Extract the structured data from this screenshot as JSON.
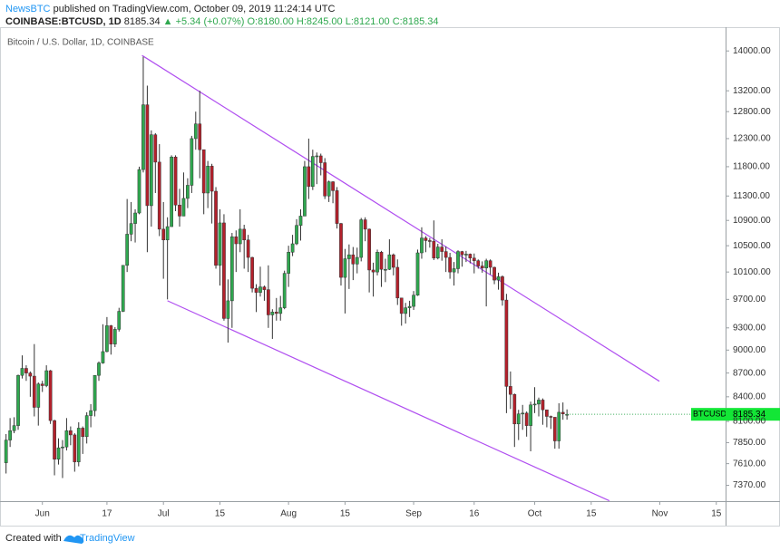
{
  "header": {
    "author": "NewsBTC",
    "published": "published on TradingView.com, October 09, 2019 11:24:14 UTC",
    "symbol": "COINBASE:BTCUSD, 1D",
    "price": "8185.34",
    "change": "▲ +5.34 (+0.07%)",
    "open": "O:8180.00",
    "high": "H:8245.00",
    "low": "L:8121.00",
    "close": "C:8185.34"
  },
  "footer": {
    "created": "Created with",
    "brand": "TradingView"
  },
  "chart_data": {
    "type": "candlestick",
    "title": "Bitcoin / U.S. Dollar, 1D, COINBASE",
    "series_name": "BTCUSD",
    "up_color": "#2fa84f",
    "down_color": "#b3202b",
    "log_scale": true,
    "grid": false,
    "ylim": [
      7200,
      14500
    ],
    "xlim": [
      -10.5,
      169.3
    ],
    "yticks": [
      {
        "value": 14000,
        "label": "14000.00"
      },
      {
        "value": 13200,
        "label": "13200.00"
      },
      {
        "value": 12800,
        "label": "12800.00"
      },
      {
        "value": 12300,
        "label": "12300.00"
      },
      {
        "value": 11800,
        "label": "11800.00"
      },
      {
        "value": 11300,
        "label": "11300.00"
      },
      {
        "value": 10900,
        "label": "10900.00"
      },
      {
        "value": 10500,
        "label": "10500.00"
      },
      {
        "value": 10100,
        "label": "10100.00"
      },
      {
        "value": 9700,
        "label": "9700.00"
      },
      {
        "value": 9300,
        "label": "9300.00"
      },
      {
        "value": 9000,
        "label": "9000.00"
      },
      {
        "value": 8700,
        "label": "8700.00"
      },
      {
        "value": 8400,
        "label": "8400.00"
      },
      {
        "value": 8100,
        "label": "8100.00"
      },
      {
        "value": 7850,
        "label": "7850.00"
      },
      {
        "value": 7610,
        "label": "7610.00"
      },
      {
        "value": 7370,
        "label": "7370.00"
      }
    ],
    "xticks": [
      {
        "value": 0,
        "label": "Jun"
      },
      {
        "value": 16,
        "label": "17"
      },
      {
        "value": 30,
        "label": "Jul"
      },
      {
        "value": 44,
        "label": "15"
      },
      {
        "value": 61,
        "label": "Aug"
      },
      {
        "value": 75,
        "label": "15"
      },
      {
        "value": 92,
        "label": "Sep"
      },
      {
        "value": 107,
        "label": "16"
      },
      {
        "value": 122,
        "label": "Oct"
      },
      {
        "value": 136,
        "label": "15"
      },
      {
        "value": 153,
        "label": "Nov"
      },
      {
        "value": 167,
        "label": "15"
      }
    ],
    "trendlines": [
      {
        "color": "#b04ff0",
        "x": [
          24.7,
          152.9
        ],
        "y": [
          13907,
          8595
        ]
      },
      {
        "color": "#b04ff0",
        "x": [
          31,
          140.5
        ],
        "y": [
          9680,
          7204
        ]
      }
    ],
    "x": [
      -9,
      -8,
      -7,
      -6,
      -5,
      -4,
      -3,
      -2,
      -1,
      0,
      1,
      2,
      3,
      4,
      5,
      6,
      7,
      8,
      9,
      10,
      11,
      12,
      13,
      14,
      15,
      16,
      17,
      18,
      19,
      20,
      21,
      22,
      23,
      24,
      25,
      26,
      27,
      28,
      29,
      30,
      31,
      32,
      33,
      34,
      35,
      36,
      37,
      38,
      39,
      40,
      41,
      42,
      43,
      44,
      45,
      46,
      47,
      48,
      49,
      50,
      51,
      52,
      53,
      54,
      55,
      56,
      57,
      58,
      59,
      60,
      61,
      62,
      63,
      64,
      65,
      66,
      67,
      68,
      69,
      70,
      71,
      72,
      73,
      74,
      75,
      76,
      77,
      78,
      79,
      80,
      81,
      82,
      83,
      84,
      85,
      86,
      87,
      88,
      89,
      90,
      91,
      92,
      93,
      94,
      95,
      96,
      97,
      98,
      99,
      100,
      101,
      102,
      103,
      104,
      105,
      106,
      107,
      108,
      109,
      110,
      111,
      112,
      113,
      114,
      115,
      116,
      117,
      118,
      119,
      120,
      121,
      122,
      123,
      124,
      125,
      126,
      127,
      128,
      129,
      130
    ],
    "candles": [
      [
        7620,
        7950,
        7500,
        7880
      ],
      [
        7880,
        8140,
        7800,
        7990
      ],
      [
        7990,
        8150,
        7960,
        8050
      ],
      [
        8050,
        8680,
        8000,
        8670
      ],
      [
        8670,
        8930,
        8630,
        8760
      ],
      [
        8760,
        8800,
        8600,
        8700
      ],
      [
        8700,
        8720,
        8400,
        8660
      ],
      [
        8660,
        9080,
        8160,
        8270
      ],
      [
        8270,
        8580,
        8050,
        8560
      ],
      [
        8560,
        8600,
        8460,
        8540
      ],
      [
        8540,
        8800,
        8520,
        8730
      ],
      [
        8730,
        8740,
        8070,
        8110
      ],
      [
        8110,
        8120,
        7480,
        7660
      ],
      [
        7660,
        7900,
        7600,
        7790
      ],
      [
        7790,
        7880,
        7450,
        7800
      ],
      [
        7800,
        8140,
        7760,
        7990
      ],
      [
        7990,
        8040,
        7820,
        7940
      ],
      [
        7940,
        7960,
        7520,
        7630
      ],
      [
        7630,
        8090,
        7580,
        8020
      ],
      [
        8020,
        8040,
        7720,
        7920
      ],
      [
        7920,
        8210,
        7840,
        8170
      ],
      [
        8170,
        8310,
        8030,
        8230
      ],
      [
        8230,
        8670,
        8160,
        8670
      ],
      [
        8670,
        8850,
        8600,
        8830
      ],
      [
        8830,
        9350,
        8820,
        8980
      ],
      [
        8980,
        9450,
        8970,
        9330
      ],
      [
        9330,
        9340,
        8940,
        9080
      ],
      [
        9080,
        9310,
        9040,
        9280
      ],
      [
        9280,
        9580,
        9250,
        9530
      ],
      [
        9530,
        10200,
        9520,
        10200
      ],
      [
        10200,
        11250,
        10100,
        10680
      ],
      [
        10680,
        11200,
        10570,
        10850
      ],
      [
        10850,
        11080,
        10550,
        11020
      ],
      [
        11020,
        11800,
        11000,
        11750
      ],
      [
        11750,
        13880,
        11700,
        12930
      ],
      [
        12930,
        13300,
        10400,
        11140
      ],
      [
        11140,
        12450,
        10800,
        12370
      ],
      [
        12370,
        12400,
        11350,
        11880
      ],
      [
        11880,
        12200,
        10650,
        10760
      ],
      [
        10760,
        11200,
        10000,
        10590
      ],
      [
        10590,
        10950,
        9700,
        10800
      ],
      [
        10800,
        12000,
        10800,
        11970
      ],
      [
        11970,
        12000,
        11050,
        11150
      ],
      [
        11150,
        11420,
        10800,
        10970
      ],
      [
        10970,
        11700,
        10970,
        11260
      ],
      [
        11260,
        11600,
        11100,
        11480
      ],
      [
        11480,
        12350,
        11350,
        12300
      ],
      [
        12300,
        12800,
        12100,
        12570
      ],
      [
        12570,
        13200,
        11600,
        12100
      ],
      [
        12100,
        12100,
        11000,
        11350
      ],
      [
        11350,
        11900,
        11100,
        11810
      ],
      [
        11810,
        11850,
        10850,
        11380
      ],
      [
        11380,
        11450,
        10150,
        10200
      ],
      [
        10200,
        11080,
        9900,
        10860
      ],
      [
        10860,
        11000,
        9400,
        9430
      ],
      [
        9430,
        9990,
        9100,
        9680
      ],
      [
        9680,
        10700,
        9300,
        10640
      ],
      [
        10640,
        10740,
        10100,
        10530
      ],
      [
        10530,
        11080,
        10400,
        10760
      ],
      [
        10760,
        10830,
        10150,
        10590
      ],
      [
        10590,
        10670,
        10100,
        10320
      ],
      [
        10320,
        10330,
        9800,
        9860
      ],
      [
        9860,
        9920,
        9520,
        9800
      ],
      [
        9800,
        10180,
        9740,
        9880
      ],
      [
        9880,
        9900,
        9680,
        9840
      ],
      [
        9840,
        10200,
        9300,
        9480
      ],
      [
        9480,
        9560,
        9150,
        9520
      ],
      [
        9520,
        9720,
        9400,
        9500
      ],
      [
        9500,
        9750,
        9400,
        9580
      ],
      [
        9580,
        10120,
        9560,
        10080
      ],
      [
        10080,
        10500,
        9880,
        10400
      ],
      [
        10400,
        10670,
        10340,
        10530
      ],
      [
        10530,
        10920,
        10510,
        10820
      ],
      [
        10820,
        11080,
        10580,
        10970
      ],
      [
        10970,
        11900,
        10970,
        11800
      ],
      [
        11800,
        12300,
        11250,
        11460
      ],
      [
        11460,
        12100,
        11400,
        11980
      ],
      [
        11980,
        12050,
        11500,
        11990
      ],
      [
        11990,
        12030,
        11650,
        11870
      ],
      [
        11870,
        11950,
        11250,
        11300
      ],
      [
        11300,
        11560,
        11200,
        11540
      ],
      [
        11540,
        11550,
        11180,
        11390
      ],
      [
        11390,
        11450,
        10770,
        10850
      ],
      [
        10850,
        10860,
        9900,
        10020
      ],
      [
        10020,
        10450,
        9500,
        10300
      ],
      [
        10300,
        10520,
        9850,
        10360
      ],
      [
        10360,
        10480,
        9980,
        10220
      ],
      [
        10220,
        10470,
        10080,
        10320
      ],
      [
        10320,
        10940,
        10260,
        10910
      ],
      [
        10910,
        10950,
        10570,
        10760
      ],
      [
        10760,
        10770,
        9800,
        10130
      ],
      [
        10130,
        10240,
        9740,
        10100
      ],
      [
        10100,
        10440,
        10050,
        10400
      ],
      [
        10400,
        10420,
        9880,
        10140
      ],
      [
        10140,
        10300,
        9950,
        10140
      ],
      [
        10140,
        10600,
        10130,
        10360
      ],
      [
        10360,
        10380,
        10050,
        10170
      ],
      [
        10170,
        10290,
        9620,
        9720
      ],
      [
        9720,
        9720,
        9330,
        9500
      ],
      [
        9500,
        9650,
        9360,
        9580
      ],
      [
        9580,
        9680,
        9450,
        9600
      ],
      [
        9600,
        9820,
        9550,
        9760
      ],
      [
        9760,
        10440,
        9750,
        10390
      ],
      [
        10390,
        10790,
        10300,
        10620
      ],
      [
        10620,
        10650,
        10400,
        10580
      ],
      [
        10580,
        10620,
        10470,
        10570
      ],
      [
        10570,
        10900,
        10280,
        10310
      ],
      [
        10310,
        10530,
        10290,
        10480
      ],
      [
        10480,
        10600,
        10270,
        10410
      ],
      [
        10410,
        10490,
        10100,
        10320
      ],
      [
        10320,
        10390,
        10000,
        10100
      ],
      [
        10100,
        10250,
        9900,
        10150
      ],
      [
        10150,
        10430,
        10080,
        10410
      ],
      [
        10410,
        10420,
        10180,
        10360
      ],
      [
        10360,
        10420,
        10250,
        10370
      ],
      [
        10370,
        10380,
        10230,
        10310
      ],
      [
        10310,
        10380,
        10080,
        10270
      ],
      [
        10270,
        10290,
        10150,
        10190
      ],
      [
        10190,
        10260,
        10090,
        10160
      ],
      [
        10160,
        10300,
        9600,
        10270
      ],
      [
        10270,
        10290,
        10060,
        10170
      ],
      [
        10170,
        10180,
        9920,
        9980
      ],
      [
        9980,
        10090,
        9840,
        10030
      ],
      [
        10030,
        10050,
        9610,
        9690
      ],
      [
        9690,
        9780,
        8200,
        8530
      ],
      [
        8530,
        8720,
        8250,
        8430
      ],
      [
        8430,
        8440,
        7800,
        8070
      ],
      [
        8070,
        8240,
        7880,
        8190
      ],
      [
        8190,
        8300,
        8000,
        8200
      ],
      [
        8200,
        8220,
        7920,
        8050
      ],
      [
        8050,
        8340,
        7750,
        8300
      ],
      [
        8300,
        8520,
        8200,
        8310
      ],
      [
        8310,
        8390,
        8160,
        8360
      ],
      [
        8360,
        8380,
        8060,
        8240
      ],
      [
        8240,
        8240,
        8030,
        8160
      ],
      [
        8160,
        8170,
        8010,
        8150
      ],
      [
        8150,
        8150,
        7780,
        7870
      ],
      [
        7870,
        8320,
        7780,
        8210
      ],
      [
        8210,
        8330,
        8120,
        8190
      ],
      [
        8180,
        8245,
        8121,
        8185.34
      ]
    ]
  }
}
